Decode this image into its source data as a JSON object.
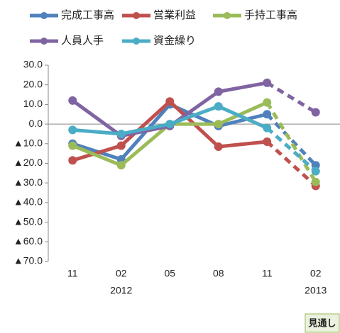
{
  "chart_data": {
    "type": "line",
    "categories": [
      "11",
      "02",
      "05",
      "08",
      "11",
      "02"
    ],
    "category_years": [
      null,
      "2012",
      null,
      null,
      null,
      "2013"
    ],
    "series": [
      {
        "name": "完成工事高",
        "color": "#4f81bd",
        "values": [
          -10,
          -18,
          10,
          -1,
          5,
          -21
        ]
      },
      {
        "name": "営業利益",
        "color": "#c0504d",
        "values": [
          -18.5,
          -11,
          11.5,
          -11.5,
          -9,
          -31.5
        ]
      },
      {
        "name": "手持工事高",
        "color": "#9bbb59",
        "values": [
          -11,
          -21,
          0,
          0,
          11,
          -29.5
        ]
      },
      {
        "name": "人員人手",
        "color": "#8064a2",
        "values": [
          12,
          -6,
          -1,
          16.5,
          21,
          6
        ]
      },
      {
        "name": "資金繰り",
        "color": "#4bacc6",
        "values": [
          -3,
          -5,
          0,
          9,
          -2,
          -24
        ]
      }
    ],
    "forecast_start": 4,
    "annotation": "見通し",
    "ylim": [
      -70,
      30
    ],
    "yticks": [
      {
        "value": 30,
        "label": "30.0"
      },
      {
        "value": 20,
        "label": "20.0"
      },
      {
        "value": 10,
        "label": "10.0"
      },
      {
        "value": 0,
        "label": "0.0"
      },
      {
        "value": -10,
        "label": "▲10.0"
      },
      {
        "value": -20,
        "label": "▲20.0"
      },
      {
        "value": -30,
        "label": "▲30.0"
      },
      {
        "value": -40,
        "label": "▲40.0"
      },
      {
        "value": -50,
        "label": "▲50.0"
      },
      {
        "value": -60,
        "label": "▲60.0"
      },
      {
        "value": -70,
        "label": "▲70.0"
      }
    ],
    "grid": false
  }
}
